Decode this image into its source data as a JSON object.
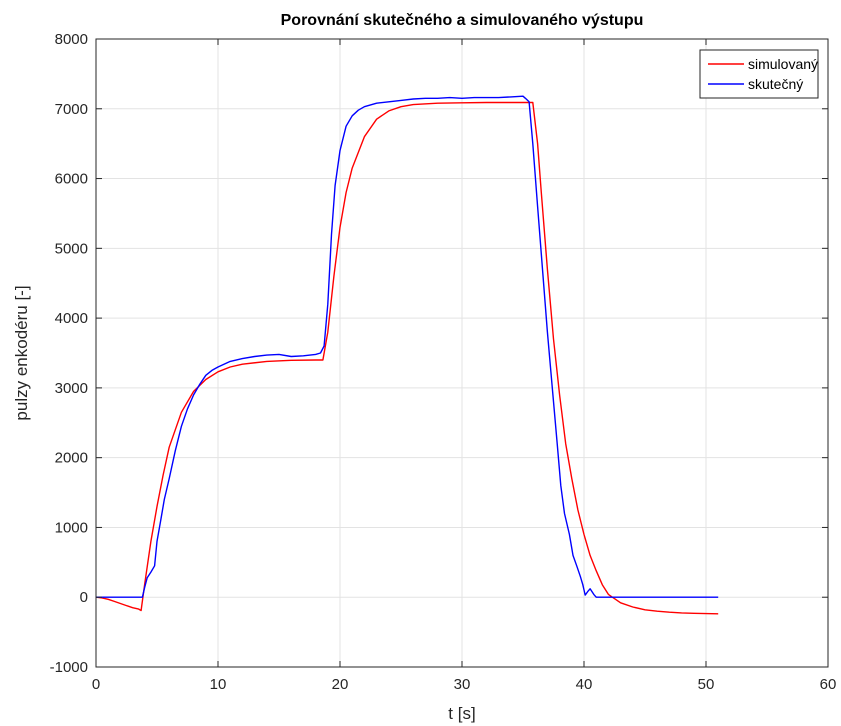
{
  "chart_data": {
    "type": "line",
    "title": "Porovnání skutečného a simulovaného výstupu",
    "xlabel": "t [s]",
    "ylabel": "pulzy enkodéru [-]",
    "xlim": [
      0,
      60
    ],
    "ylim": [
      -1000,
      8000
    ],
    "xticks": [
      0,
      10,
      20,
      30,
      40,
      50,
      60
    ],
    "yticks": [
      -1000,
      0,
      1000,
      2000,
      3000,
      4000,
      5000,
      6000,
      7000,
      8000
    ],
    "xtick_labels": [
      "0",
      "10",
      "20",
      "30",
      "40",
      "50",
      "60"
    ],
    "ytick_labels": [
      "-1000",
      "0",
      "1000",
      "2000",
      "3000",
      "4000",
      "5000",
      "6000",
      "7000",
      "8000"
    ],
    "grid": true,
    "legend_position": "top-right",
    "series": [
      {
        "name": "simulovaný",
        "color": "#ff0000",
        "x": [
          0,
          0.5,
          1,
          1.5,
          2,
          2.5,
          3,
          3.5,
          3.7,
          4.0,
          4.5,
          5,
          5.5,
          6,
          7,
          8,
          9,
          10,
          11,
          12,
          14,
          16,
          18,
          18.6,
          19.0,
          19.5,
          20,
          20.5,
          21,
          22,
          23,
          24,
          25,
          26,
          28,
          30,
          32,
          34,
          35.5,
          35.8,
          36.2,
          36.5,
          37,
          37.5,
          38,
          38.5,
          39,
          39.5,
          40,
          40.5,
          41,
          41.5,
          42,
          43,
          44,
          45,
          46,
          47,
          48,
          49,
          50,
          51
        ],
        "y": [
          0,
          -10,
          -30,
          -60,
          -90,
          -120,
          -150,
          -170,
          -190,
          200,
          800,
          1300,
          1750,
          2150,
          2650,
          2950,
          3120,
          3230,
          3300,
          3340,
          3380,
          3395,
          3400,
          3400,
          3800,
          4600,
          5300,
          5800,
          6150,
          6600,
          6850,
          6970,
          7030,
          7060,
          7080,
          7085,
          7090,
          7090,
          7090,
          7090,
          6500,
          5800,
          4700,
          3700,
          2900,
          2200,
          1700,
          1250,
          900,
          600,
          380,
          180,
          40,
          -80,
          -140,
          -180,
          -200,
          -215,
          -225,
          -230,
          -235,
          -238
        ]
      },
      {
        "name": "skutečný",
        "color": "#0000ff",
        "x": [
          0,
          1,
          2,
          3,
          3.5,
          3.8,
          4.0,
          4.2,
          4.5,
          4.8,
          5.0,
          5.3,
          5.6,
          6,
          6.5,
          7,
          7.5,
          8,
          8.5,
          9,
          9.5,
          10,
          11,
          12,
          13,
          14,
          15,
          16,
          17,
          18,
          18.4,
          18.7,
          19.0,
          19.3,
          19.6,
          20,
          20.5,
          21,
          21.5,
          22,
          23,
          24,
          25,
          26,
          27,
          28,
          29,
          30,
          31,
          32,
          33,
          34,
          35,
          35.2,
          35.5,
          35.8,
          36.2,
          36.6,
          37,
          37.4,
          37.8,
          38.1,
          38.4,
          38.8,
          39.1,
          39.4,
          39.7,
          39.9,
          40.1,
          40.3,
          40.5,
          40.8,
          41,
          41.5,
          42,
          44,
          46,
          48,
          50,
          51
        ],
        "y": [
          0,
          0,
          0,
          0,
          0,
          0,
          150,
          280,
          360,
          450,
          800,
          1100,
          1400,
          1700,
          2100,
          2450,
          2700,
          2900,
          3050,
          3180,
          3250,
          3300,
          3380,
          3420,
          3450,
          3470,
          3480,
          3450,
          3460,
          3480,
          3500,
          3600,
          4200,
          5200,
          5900,
          6400,
          6750,
          6900,
          6980,
          7030,
          7080,
          7100,
          7120,
          7140,
          7150,
          7150,
          7160,
          7150,
          7160,
          7160,
          7160,
          7170,
          7180,
          7150,
          7100,
          6500,
          5600,
          4700,
          3800,
          3000,
          2200,
          1600,
          1200,
          900,
          600,
          450,
          300,
          180,
          30,
          80,
          120,
          40,
          0,
          0,
          0,
          0,
          0,
          0,
          0,
          0
        ]
      }
    ]
  }
}
